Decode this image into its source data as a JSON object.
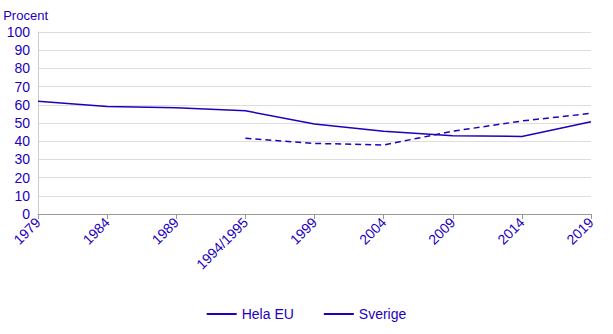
{
  "chart_data": {
    "type": "line",
    "y_label": "Procent",
    "categories": [
      "1979",
      "1984",
      "1989",
      "1994/1995",
      "1999",
      "2004",
      "2009",
      "2014",
      "2019"
    ],
    "series": [
      {
        "name": "Hela EU",
        "color": "#1e00be",
        "line_style": "solid",
        "values": [
          62.0,
          59.0,
          58.4,
          56.7,
          49.5,
          45.5,
          43.0,
          42.6,
          50.7
        ]
      },
      {
        "name": "Sverige",
        "color": "#1e00be",
        "line_style": "dashed",
        "values": [
          null,
          null,
          null,
          41.6,
          38.8,
          37.9,
          45.5,
          51.1,
          55.3
        ]
      }
    ],
    "ylim": [
      0,
      100
    ],
    "yticks": [
      0,
      10,
      20,
      30,
      40,
      50,
      60,
      70,
      80,
      90,
      100
    ],
    "grid": true,
    "legend": "bottom"
  }
}
